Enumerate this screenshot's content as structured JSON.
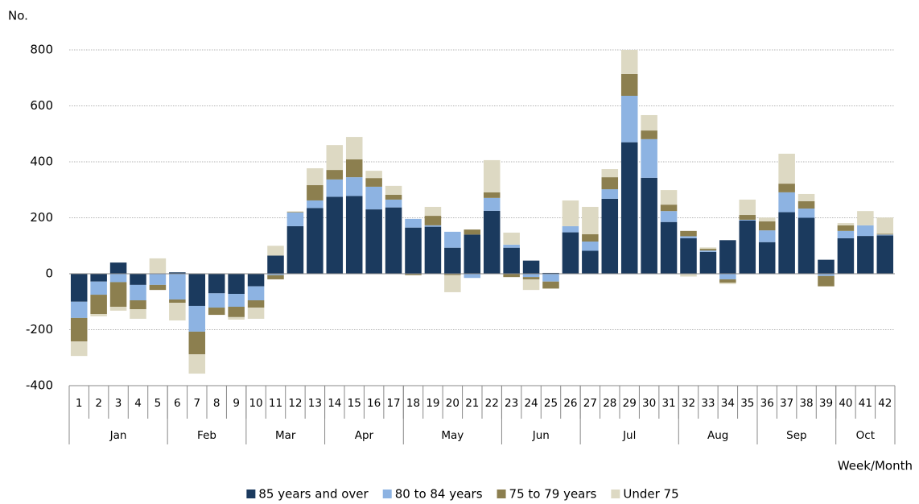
{
  "chart_data": {
    "type": "bar",
    "stacked": true,
    "y_axis_title": "No.",
    "x_axis_title": "Week/Month",
    "categories": [
      "1",
      "2",
      "3",
      "4",
      "5",
      "6",
      "7",
      "8",
      "9",
      "10",
      "11",
      "12",
      "13",
      "14",
      "15",
      "16",
      "17",
      "18",
      "19",
      "20",
      "21",
      "22",
      "23",
      "24",
      "25",
      "26",
      "27",
      "28",
      "29",
      "30",
      "31",
      "32",
      "33",
      "34",
      "35",
      "36",
      "37",
      "38",
      "39",
      "40",
      "41",
      "42"
    ],
    "groups": [
      {
        "label": "Jan",
        "weeks": 5
      },
      {
        "label": "Feb",
        "weeks": 4
      },
      {
        "label": "Mar",
        "weeks": 4
      },
      {
        "label": "Apr",
        "weeks": 4
      },
      {
        "label": "May",
        "weeks": 5
      },
      {
        "label": "Jun",
        "weeks": 4
      },
      {
        "label": "Jul",
        "weeks": 5
      },
      {
        "label": "Aug",
        "weeks": 4
      },
      {
        "label": "Sep",
        "weeks": 4
      },
      {
        "label": "Oct",
        "weeks": 3
      }
    ],
    "series": [
      {
        "name": "85 years and over",
        "color": "#1b3a5e",
        "values": [
          -100,
          -28,
          40,
          -40,
          0,
          5,
          -115,
          -70,
          -72,
          -45,
          65,
          170,
          235,
          275,
          278,
          230,
          237,
          165,
          168,
          93,
          140,
          225,
          93,
          47,
          3,
          148,
          82,
          268,
          470,
          343,
          185,
          127,
          78,
          120,
          190,
          113,
          220,
          200,
          50,
          127,
          135,
          137
        ]
      },
      {
        "name": "80 to 84 years",
        "color": "#8db3e2",
        "values": [
          -58,
          -47,
          -30,
          -55,
          -40,
          -92,
          -92,
          -51,
          -46,
          -50,
          -5,
          49,
          27,
          62,
          67,
          81,
          28,
          31,
          5,
          57,
          -15,
          46,
          11,
          -12,
          -28,
          22,
          33,
          34,
          166,
          138,
          39,
          7,
          5,
          -20,
          3,
          42,
          71,
          33,
          -8,
          26,
          38,
          3
        ]
      },
      {
        "name": "75 to 79 years",
        "color": "#8c7f4f",
        "values": [
          -84,
          -69,
          -88,
          -32,
          -18,
          -12,
          -81,
          -26,
          -37,
          -26,
          -15,
          2,
          55,
          34,
          64,
          31,
          17,
          -5,
          34,
          -5,
          18,
          20,
          -12,
          -8,
          -25,
          0,
          26,
          43,
          78,
          31,
          23,
          19,
          6,
          -12,
          17,
          32,
          31,
          26,
          -37,
          20,
          0,
          3
        ]
      },
      {
        "name": "Under 75",
        "color": "#ddd9c3",
        "values": [
          -52,
          -8,
          -14,
          -34,
          55,
          -63,
          -69,
          0,
          -9,
          -40,
          35,
          2,
          60,
          89,
          80,
          26,
          32,
          0,
          32,
          -61,
          0,
          115,
          43,
          -38,
          0,
          92,
          98,
          29,
          86,
          55,
          52,
          -10,
          5,
          -5,
          55,
          14,
          107,
          26,
          0,
          8,
          51,
          58
        ]
      }
    ],
    "ylim": [
      -400,
      800
    ],
    "yticks": [
      -400,
      -200,
      0,
      200,
      400,
      600,
      800
    ],
    "grid": true,
    "legend": "bottom"
  }
}
